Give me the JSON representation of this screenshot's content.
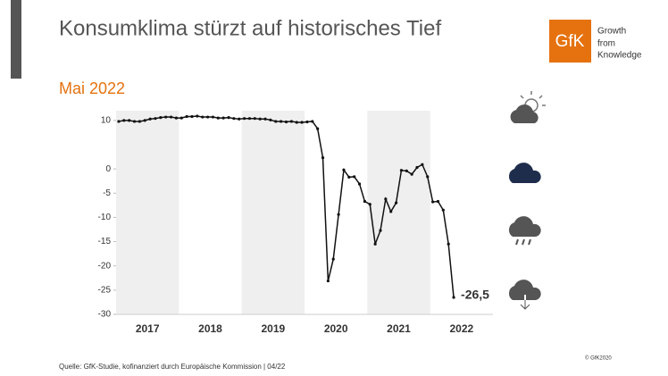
{
  "header": {
    "title": "Konsumklima stürzt auf historisches Tief",
    "logo": "GfK",
    "tagline": [
      "Growth",
      "from",
      "Knowledge"
    ]
  },
  "chart_data": {
    "type": "line",
    "subtitle": "Mai 2022",
    "categories": [
      null,
      null,
      null,
      null,
      null,
      null,
      "2017",
      null,
      null,
      null,
      null,
      null,
      null,
      null,
      null,
      null,
      null,
      null,
      "2018",
      null,
      null,
      null,
      null,
      null,
      null,
      null,
      null,
      null,
      null,
      null,
      "2019",
      null,
      null,
      null,
      null,
      null,
      null,
      null,
      null,
      null,
      null,
      null,
      "2020",
      null,
      null,
      null,
      null,
      null,
      null,
      null,
      null,
      null,
      null,
      null,
      "2021",
      null,
      null,
      null,
      null,
      null,
      null,
      null,
      null,
      null,
      null,
      null,
      "2022",
      null,
      null,
      null,
      null,
      null
    ],
    "values": [
      9.8,
      10.0,
      10.0,
      9.8,
      9.8,
      10.0,
      10.3,
      10.4,
      10.6,
      10.7,
      10.7,
      10.5,
      10.5,
      10.8,
      10.8,
      10.9,
      10.7,
      10.7,
      10.7,
      10.5,
      10.5,
      10.6,
      10.4,
      10.3,
      10.4,
      10.4,
      10.4,
      10.3,
      10.3,
      10.1,
      9.8,
      9.8,
      9.7,
      9.8,
      9.6,
      9.6,
      9.7,
      9.8,
      8.3,
      2.3,
      -23.1,
      -18.6,
      -9.4,
      -0.2,
      -1.7,
      -1.6,
      -3.1,
      -6.7,
      -7.3,
      -15.5,
      -12.7,
      -6.2,
      -8.8,
      -7.0,
      -0.3,
      -0.4,
      -1.1,
      0.3,
      0.9,
      -1.6,
      -6.8,
      -6.7,
      -8.5,
      -15.5,
      -26.5,
      null,
      null,
      null,
      null,
      null,
      null,
      null
    ],
    "value_labels": [
      null,
      null,
      null,
      null,
      null,
      null,
      null,
      null,
      null,
      null,
      null,
      null,
      null,
      null,
      null,
      null,
      null,
      null,
      null,
      null,
      null,
      null,
      null,
      null,
      null,
      null,
      null,
      null,
      null,
      null,
      null,
      null,
      null,
      null,
      null,
      null,
      null,
      null,
      null,
      null,
      null,
      null,
      null,
      null,
      null,
      null,
      null,
      null,
      null,
      null,
      null,
      null,
      null,
      null,
      null,
      null,
      null,
      null,
      null,
      null,
      null,
      null,
      null,
      null,
      "-26,5",
      null,
      null,
      null,
      null,
      null,
      null,
      null
    ],
    "color": "#111111",
    "ylim": [
      -30,
      12
    ],
    "yticks": [
      10,
      0,
      -5,
      -10,
      -15,
      -20,
      -25,
      -30
    ]
  },
  "footer": {
    "source": "Quelle: GfK-Studie, kofinanziert durch Europäische Kommission | 04/22",
    "copyright": "© GfK2020"
  }
}
